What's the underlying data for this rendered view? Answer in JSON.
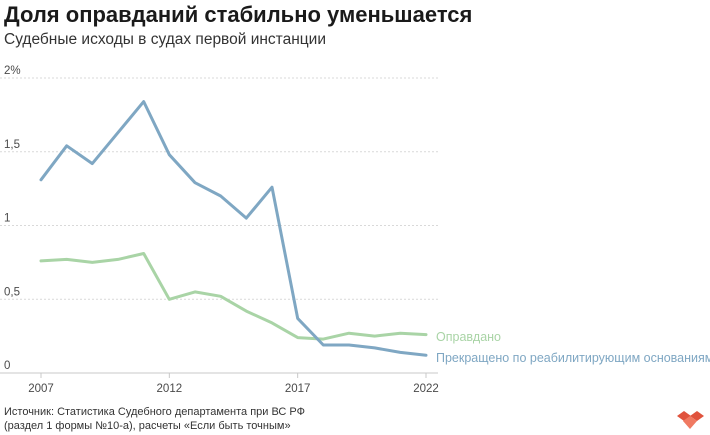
{
  "title": "Доля оправданий стабильно уменьшается",
  "subtitle": "Судебные исходы в судах первой инстанции",
  "source_line1": "Источник: Статистика Судебного департамента при ВС РФ",
  "source_line2": "(раздел 1 формы №10-а), расчеты «Если быть точным»",
  "chart_data": {
    "type": "line",
    "title": "Доля оправданий стабильно уменьшается",
    "subtitle": "Судебные исходы в судах первой инстанции",
    "xlabel": "",
    "ylabel": "",
    "x": [
      2007,
      2008,
      2009,
      2010,
      2011,
      2012,
      2013,
      2014,
      2015,
      2016,
      2017,
      2018,
      2019,
      2020,
      2021,
      2022
    ],
    "x_ticks": [
      "2007",
      "2012",
      "2017",
      "2022"
    ],
    "x_tick_values": [
      2007,
      2012,
      2017,
      2022
    ],
    "y_ticks": [
      "0",
      "0,5",
      "1",
      "1,5",
      "2%"
    ],
    "y_tick_values": [
      0,
      0.5,
      1,
      1.5,
      2
    ],
    "ylim": [
      0,
      2
    ],
    "xlim": [
      2007,
      2022
    ],
    "grid": true,
    "legend": "inline-right",
    "series": [
      {
        "name": "Оправдано",
        "color": "#a9d4a6",
        "values": [
          0.76,
          0.77,
          0.75,
          0.77,
          0.81,
          0.5,
          0.55,
          0.52,
          0.42,
          0.34,
          0.24,
          0.23,
          0.27,
          0.25,
          0.27,
          0.26
        ]
      },
      {
        "name": "Прекращено по реабилитирующим основаниям",
        "color": "#7fa7c3",
        "values": [
          1.31,
          1.54,
          1.42,
          1.63,
          1.84,
          1.48,
          1.29,
          1.2,
          1.05,
          1.26,
          0.37,
          0.19,
          0.19,
          0.17,
          0.14,
          0.12
        ]
      }
    ]
  },
  "logo_colors": [
    "#e0533d",
    "#f07a62"
  ]
}
